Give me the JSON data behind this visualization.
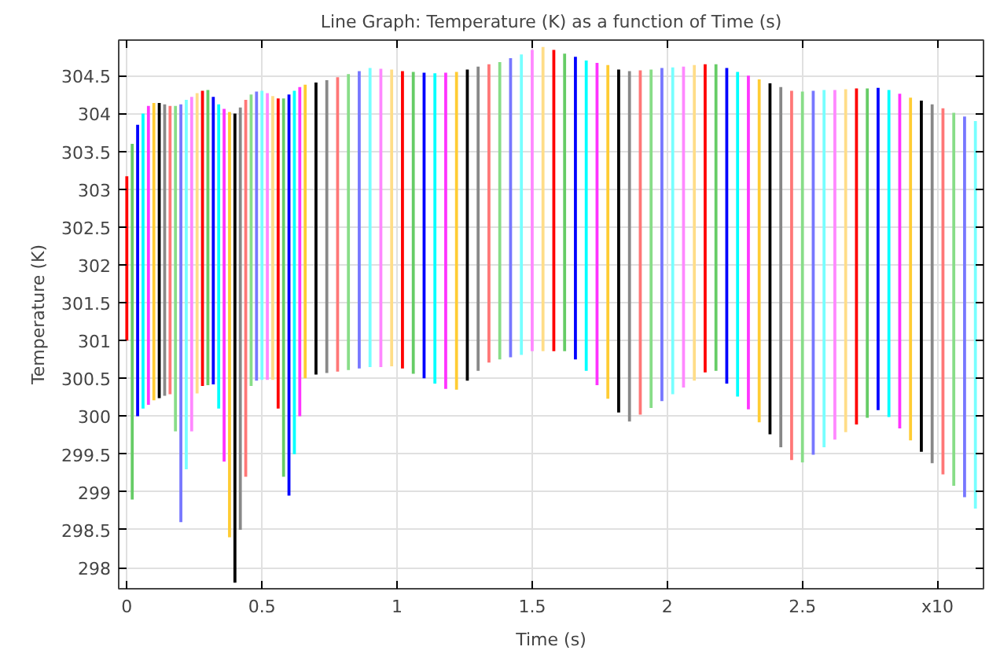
{
  "chart_data": {
    "type": "bar",
    "title": "Line Graph: Temperature (K) as a function of Time (s)",
    "xlabel": "Time (s)",
    "ylabel": "Temperature (K)",
    "x": [
      0.0,
      0.02,
      0.04,
      0.06,
      0.08,
      0.1,
      0.12,
      0.14,
      0.16,
      0.18,
      0.2,
      0.22,
      0.24,
      0.26,
      0.28,
      0.3,
      0.32,
      0.34,
      0.36,
      0.38,
      0.4,
      0.42,
      0.44,
      0.46,
      0.48,
      0.5,
      0.52,
      0.54,
      0.56,
      0.58,
      0.6,
      0.62,
      0.64,
      0.66,
      0.7,
      0.74,
      0.78,
      0.82,
      0.86,
      0.9,
      0.94,
      0.98,
      1.02,
      1.06,
      1.1,
      1.14,
      1.18,
      1.22,
      1.26,
      1.3,
      1.34,
      1.38,
      1.42,
      1.46,
      1.5,
      1.54,
      1.58,
      1.62,
      1.66,
      1.7,
      1.74,
      1.78,
      1.82,
      1.86,
      1.9,
      1.94,
      1.98,
      2.02,
      2.06,
      2.1,
      2.14,
      2.18,
      2.22,
      2.26,
      2.3,
      2.34,
      2.38,
      2.42,
      2.46,
      2.5,
      2.54,
      2.58,
      2.62,
      2.66,
      2.7,
      2.74,
      2.78,
      2.82,
      2.86,
      2.9,
      2.94,
      2.98,
      3.02,
      3.06,
      3.1,
      3.14
    ],
    "base": [
      301.0,
      298.9,
      300.0,
      300.1,
      300.15,
      300.21,
      300.24,
      300.27,
      300.29,
      299.8,
      298.6,
      299.3,
      299.8,
      300.3,
      300.4,
      300.41,
      300.42,
      300.1,
      299.4,
      298.4,
      297.8,
      298.5,
      299.2,
      300.4,
      300.47,
      300.48,
      300.48,
      300.48,
      300.1,
      299.2,
      298.95,
      299.5,
      300.0,
      300.5,
      300.55,
      300.57,
      300.59,
      300.61,
      300.63,
      300.65,
      300.65,
      300.66,
      300.63,
      300.56,
      300.5,
      300.43,
      300.36,
      300.35,
      300.47,
      300.6,
      300.71,
      300.75,
      300.78,
      300.81,
      300.86,
      300.86,
      300.86,
      300.86,
      300.75,
      300.6,
      300.41,
      300.23,
      300.05,
      299.93,
      300.02,
      300.11,
      300.2,
      300.29,
      300.38,
      300.47,
      300.58,
      300.6,
      300.43,
      300.26,
      300.09,
      299.92,
      299.76,
      299.59,
      299.42,
      299.39,
      299.49,
      299.59,
      299.69,
      299.79,
      299.89,
      299.98,
      300.08,
      299.99,
      299.84,
      299.68,
      299.53,
      299.38,
      299.23,
      299.08,
      298.93,
      298.78
    ],
    "values": [
      2.17,
      4.7,
      3.85,
      3.9,
      3.95,
      3.93,
      3.9,
      3.85,
      3.81,
      4.3,
      5.52,
      4.88,
      4.42,
      3.97,
      3.9,
      3.9,
      3.8,
      4.02,
      4.66,
      5.62,
      6.2,
      5.58,
      4.98,
      3.85,
      3.82,
      3.82,
      3.79,
      3.75,
      4.1,
      5.0,
      5.3,
      4.8,
      4.35,
      3.88,
      3.86,
      3.87,
      3.89,
      3.91,
      3.93,
      3.95,
      3.94,
      3.92,
      3.93,
      3.99,
      4.04,
      4.1,
      4.18,
      4.2,
      4.11,
      4.02,
      3.94,
      3.93,
      3.95,
      3.97,
      3.98,
      4.02,
      3.98,
      3.93,
      4.0,
      4.1,
      4.26,
      4.41,
      4.53,
      4.63,
      4.55,
      4.47,
      4.4,
      4.32,
      4.24,
      4.17,
      4.07,
      4.05,
      4.17,
      4.29,
      4.41,
      4.53,
      4.64,
      4.76,
      4.88,
      4.9,
      4.81,
      4.72,
      4.62,
      4.53,
      4.44,
      4.35,
      4.26,
      4.32,
      4.42,
      4.53,
      4.64,
      4.74,
      4.84,
      4.93,
      5.03,
      5.12
    ],
    "colors": [
      "#ff0000",
      "#66cc66",
      "#0000ff",
      "#00ffff",
      "#ff33ff",
      "#ffcc33",
      "#000000",
      "#888888",
      "#ff7777",
      "#88dd88",
      "#7777ff",
      "#77ffff",
      "#ff88ff",
      "#ffdd88",
      "#ff0000",
      "#66cc66",
      "#0000ff",
      "#00ffff",
      "#ff33ff",
      "#ffcc33",
      "#000000",
      "#888888",
      "#ff7777",
      "#88dd88",
      "#7777ff",
      "#77ffff",
      "#ff88ff",
      "#ffdd88",
      "#ff0000",
      "#66cc66",
      "#0000ff",
      "#00ffff",
      "#ff33ff",
      "#ffcc33",
      "#000000",
      "#888888",
      "#ff7777",
      "#88dd88",
      "#7777ff",
      "#77ffff",
      "#ff88ff",
      "#ffdd88",
      "#ff0000",
      "#66cc66",
      "#0000ff",
      "#00ffff",
      "#ff33ff",
      "#ffcc33",
      "#000000",
      "#888888",
      "#ff7777",
      "#88dd88",
      "#7777ff",
      "#77ffff",
      "#ff88ff",
      "#ffdd88",
      "#ff0000",
      "#66cc66",
      "#0000ff",
      "#00ffff",
      "#ff33ff",
      "#ffcc33",
      "#000000",
      "#888888",
      "#ff7777",
      "#88dd88",
      "#7777ff",
      "#77ffff",
      "#ff88ff",
      "#ffdd88",
      "#ff0000",
      "#66cc66",
      "#0000ff",
      "#00ffff",
      "#ff33ff",
      "#ffcc33",
      "#000000",
      "#888888",
      "#ff7777",
      "#88dd88",
      "#7777ff",
      "#77ffff",
      "#ff88ff",
      "#ffdd88",
      "#ff0000",
      "#66cc66",
      "#0000ff",
      "#00ffff",
      "#ff33ff",
      "#ffcc33",
      "#000000",
      "#888888",
      "#ff7777",
      "#88dd88",
      "#7777ff",
      "#77ffff"
    ],
    "xlim": [
      -0.03,
      3.17
    ],
    "ylim": [
      297.72,
      304.97
    ],
    "xticks": [
      0,
      0.5,
      1,
      1.5,
      2,
      2.5,
      {
        "value": 3,
        "label": "x10"
      }
    ],
    "yticks": [
      298,
      298.5,
      299,
      299.5,
      300,
      300.5,
      301,
      301.5,
      302,
      302.5,
      303,
      303.5,
      304,
      304.5
    ],
    "grid": true
  }
}
